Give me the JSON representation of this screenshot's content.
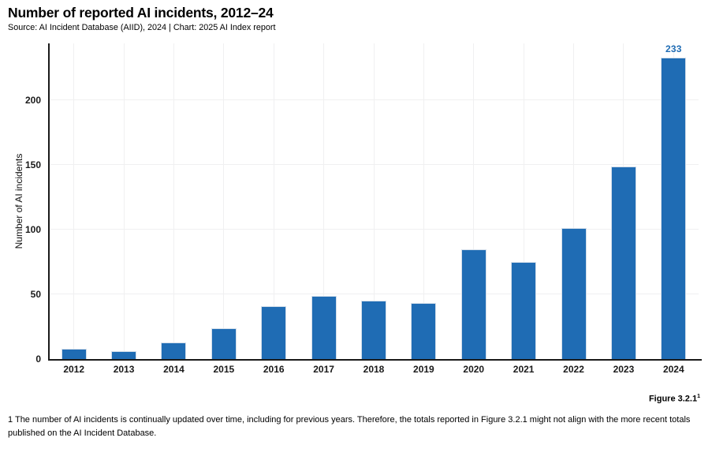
{
  "chart_data": {
    "type": "bar",
    "title": "Number of reported AI incidents, 2012–24",
    "source": "Source: AI Incident Database (AIID), 2024 | Chart: 2025 AI Index report",
    "ylabel": "Number of AI incidents",
    "xlabel": "",
    "categories": [
      "2012",
      "2013",
      "2014",
      "2015",
      "2016",
      "2017",
      "2018",
      "2019",
      "2020",
      "2021",
      "2022",
      "2023",
      "2024"
    ],
    "values": [
      8,
      6,
      13,
      24,
      41,
      49,
      45,
      43,
      85,
      75,
      101,
      149,
      233
    ],
    "yticks": [
      0,
      50,
      100,
      150,
      200
    ],
    "ylim": [
      0,
      244
    ],
    "grid": true,
    "legend": "none",
    "bar_color": "#1f6cb4",
    "labeled_bar": {
      "category": "2024",
      "label": "233"
    }
  },
  "footer": {
    "figure_label": "Figure 3.2.1",
    "figure_superscript": "1",
    "footnote": "1 The number of AI incidents is continually updated over time, including for previous years. Therefore, the totals reported in Figure 3.2.1 might not align with the more recent totals published on the AI Incident Database."
  }
}
